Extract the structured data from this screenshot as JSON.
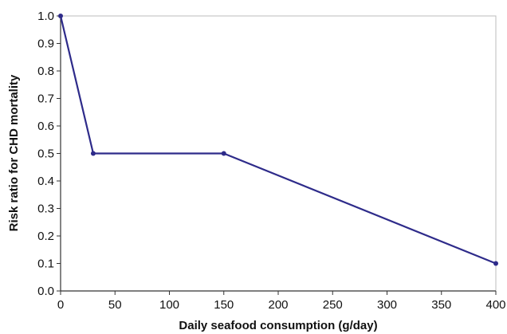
{
  "chart_data": {
    "type": "line",
    "title": "",
    "xlabel": "Daily seafood consumption (g/day)",
    "ylabel": "Risk ratio for CHD mortality",
    "xlim": [
      0,
      400
    ],
    "ylim": [
      0.0,
      1.0
    ],
    "x_ticks": [
      0,
      50,
      100,
      150,
      200,
      250,
      300,
      350,
      400
    ],
    "y_ticks": [
      0.0,
      0.1,
      0.2,
      0.3,
      0.4,
      0.5,
      0.6,
      0.7,
      0.8,
      0.9,
      1.0
    ],
    "grid": false,
    "legend": "none",
    "series": [
      {
        "color": "#2e2b8a",
        "points": [
          {
            "x": 0,
            "y": 1.0
          },
          {
            "x": 30,
            "y": 0.5
          },
          {
            "x": 150,
            "y": 0.5
          },
          {
            "x": 400,
            "y": 0.1
          }
        ]
      }
    ]
  }
}
